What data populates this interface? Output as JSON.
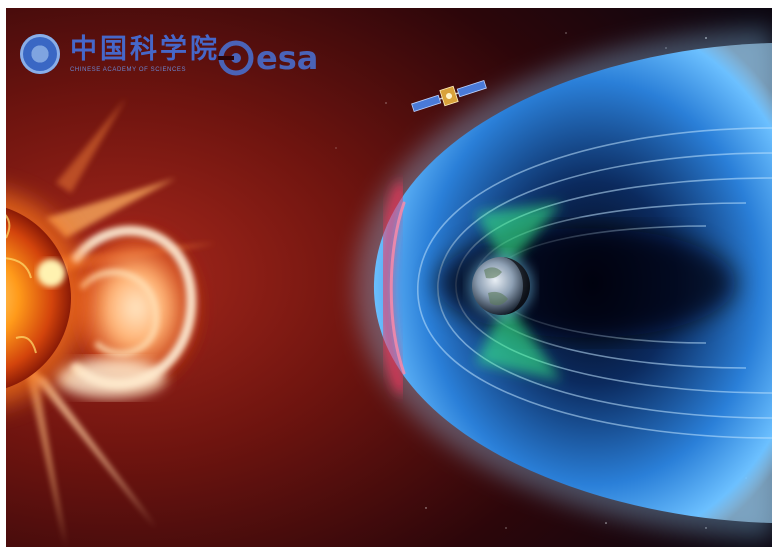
{
  "logos": {
    "cas_name_cn": "中国科学院",
    "cas_name_en": "CHINESE ACADEMY OF SCIENCES",
    "esa_name": "esa"
  },
  "colors": {
    "background": "#2a0408",
    "sun_core": "#ff9a1a",
    "cme_glow": "#ffd6a0",
    "magnetosphere_blue": "#4aa8ff",
    "bow_shock_red": "#ff3a5a",
    "cusp_green": "#3cff8c",
    "logo_blue": "#4667c9"
  },
  "scene": {
    "subjects": [
      "sun-icon",
      "cme-icon",
      "magnetosphere-icon",
      "earth-icon",
      "satellite-icon"
    ]
  }
}
